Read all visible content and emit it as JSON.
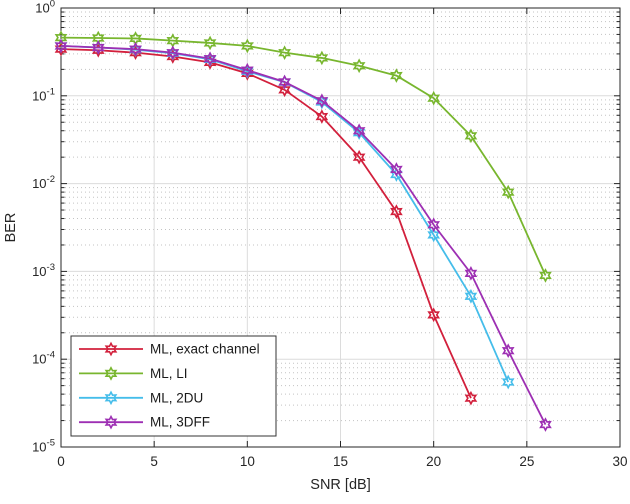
{
  "figure": {
    "background": "#ffffff",
    "axis_color": "#262626",
    "major_grid_color": "#dcdcdc",
    "minor_grid_color": "#c3c3c3",
    "text_color": "#262626",
    "legend_border_color": "#333333",
    "legend_background": "#ffffff"
  },
  "chart_data": {
    "type": "line",
    "title": "",
    "xlabel": "SNR [dB]",
    "ylabel": "BER",
    "xlim": [
      0,
      30
    ],
    "ylim": [
      1e-05,
      1
    ],
    "yscale": "log",
    "xscale": "linear",
    "xticks": [
      0,
      5,
      10,
      15,
      20,
      25,
      30
    ],
    "ytick_exponents": [
      0,
      -1,
      -2,
      -3,
      -4,
      -5
    ],
    "ytick_labels": [
      "10^0",
      "10^-1",
      "10^-2",
      "10^-3",
      "10^-4",
      "10^-5"
    ],
    "grid": "major solid on, log minor dotted on",
    "legend_position": "bottom-left",
    "marker": "hexagram",
    "series": [
      {
        "name": "ML, exact channel",
        "color": "#d2203c",
        "x": [
          0,
          2,
          4,
          6,
          8,
          10,
          12,
          14,
          16,
          18,
          20,
          22
        ],
        "y": [
          0.34,
          0.33,
          0.31,
          0.28,
          0.24,
          0.18,
          0.117,
          0.058,
          0.02,
          0.0048,
          0.00032,
          3.6e-05
        ]
      },
      {
        "name": "ML, LI",
        "color": "#78b62e",
        "x": [
          0,
          2,
          4,
          6,
          8,
          10,
          12,
          14,
          16,
          18,
          20,
          22,
          24,
          26
        ],
        "y": [
          0.46,
          0.455,
          0.45,
          0.425,
          0.4,
          0.37,
          0.31,
          0.27,
          0.22,
          0.17,
          0.094,
          0.035,
          0.008,
          0.0009
        ]
      },
      {
        "name": "ML, 2DU",
        "color": "#45bdea",
        "x": [
          0,
          2,
          4,
          6,
          8,
          10,
          12,
          14,
          16,
          18,
          20,
          22,
          24
        ],
        "y": [
          0.37,
          0.355,
          0.335,
          0.305,
          0.26,
          0.19,
          0.143,
          0.085,
          0.038,
          0.0127,
          0.0026,
          0.00052,
          5.5e-05
        ]
      },
      {
        "name": "ML, 3DFF",
        "color": "#9d2fb3",
        "x": [
          0,
          2,
          4,
          6,
          8,
          10,
          12,
          14,
          16,
          18,
          20,
          22,
          24,
          26
        ],
        "y": [
          0.37,
          0.355,
          0.34,
          0.31,
          0.265,
          0.196,
          0.144,
          0.088,
          0.04,
          0.0145,
          0.0034,
          0.00095,
          0.000125,
          1.8e-05
        ]
      }
    ]
  }
}
